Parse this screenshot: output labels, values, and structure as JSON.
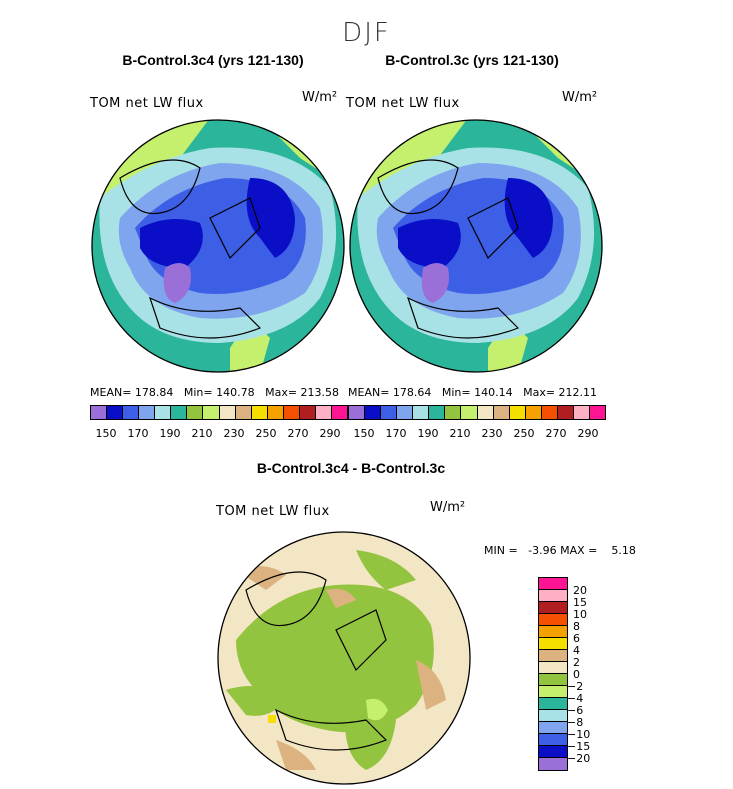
{
  "figure": {
    "season": "DJF",
    "panels": [
      {
        "title": "B-Control.3c4 (yrs 121-130)",
        "variable": "TOM net LW flux",
        "units": "W/m²",
        "stats": "MEAN= 178.84   Min= 140.78   Max= 213.58"
      },
      {
        "title": "B-Control.3c (yrs 121-130)",
        "variable": "TOM net LW flux",
        "units": "W/m²",
        "stats": "MEAN= 178.64   Min= 140.14   Max= 212.11"
      }
    ],
    "diff_panel": {
      "title": "B-Control.3c4 - B-Control.3c",
      "variable": "TOM net LW flux",
      "units": "W/m²",
      "stats": "MIN =   -3.96 MAX =    5.18"
    }
  },
  "chart_data": [
    {
      "type": "heatmap",
      "title": "B-Control.3c4 (yrs 121-130)",
      "subtitle": "TOM net LW flux",
      "units": "W/m2",
      "projection": "polar stereographic, North Pole",
      "mean": 178.84,
      "min": 140.78,
      "max": 213.58,
      "colorbar_labels": [
        "150",
        "170",
        "190",
        "210",
        "230",
        "250",
        "270",
        "290"
      ],
      "colorbar_colors": [
        "#9b6fd8",
        "#0a0fc7",
        "#3c5fe6",
        "#7ea5ee",
        "#a9e2e6",
        "#2bb59a",
        "#93c43f",
        "#c4f06e",
        "#f3e6c4",
        "#dcb380",
        "#f5df00",
        "#f5a200",
        "#f55000",
        "#b01e22",
        "#ffb0c4",
        "#ff1493"
      ]
    },
    {
      "type": "heatmap",
      "title": "B-Control.3c (yrs 121-130)",
      "subtitle": "TOM net LW flux",
      "units": "W/m2",
      "projection": "polar stereographic, North Pole",
      "mean": 178.64,
      "min": 140.14,
      "max": 212.11,
      "colorbar_labels": [
        "150",
        "170",
        "190",
        "210",
        "230",
        "250",
        "270",
        "290"
      ],
      "colorbar_colors": [
        "#9b6fd8",
        "#0a0fc7",
        "#3c5fe6",
        "#7ea5ee",
        "#a9e2e6",
        "#2bb59a",
        "#93c43f",
        "#c4f06e",
        "#f3e6c4",
        "#dcb380",
        "#f5df00",
        "#f5a200",
        "#f55000",
        "#b01e22",
        "#ffb0c4",
        "#ff1493"
      ]
    },
    {
      "type": "heatmap",
      "title": "B-Control.3c4 - B-Control.3c",
      "subtitle": "TOM net LW flux",
      "units": "W/m2",
      "projection": "polar stereographic, North Pole",
      "min": -3.96,
      "max": 5.18,
      "colorbar_labels": [
        "20",
        "15",
        "10",
        "8",
        "6",
        "4",
        "2",
        "0",
        "−2",
        "−4",
        "−6",
        "−8",
        "−10",
        "−15",
        "−20"
      ],
      "colorbar_colors": [
        "#ff1493",
        "#ffb0c4",
        "#b01e22",
        "#f55000",
        "#f5a200",
        "#f5df00",
        "#dcb380",
        "#f3e6c4",
        "#93c43f",
        "#c4f06e",
        "#2bb59a",
        "#a9e2e6",
        "#7ea5ee",
        "#3c5fe6",
        "#0a0fc7",
        "#9b6fd8"
      ]
    }
  ]
}
